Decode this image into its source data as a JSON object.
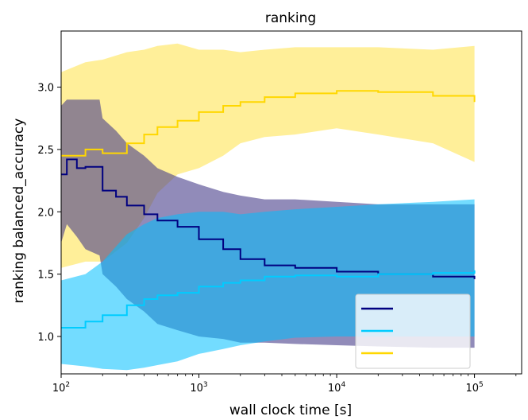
{
  "chart_data": {
    "type": "line",
    "title": "ranking",
    "xlabel": "wall clock time [s]",
    "ylabel": "ranking balanced_accuracy",
    "xscale": "log",
    "xlim": [
      100,
      220000
    ],
    "ylim": [
      0.7,
      3.45
    ],
    "x_ticks": [
      {
        "value": 100,
        "base": "10",
        "exp": "2"
      },
      {
        "value": 1000,
        "base": "10",
        "exp": "3"
      },
      {
        "value": 10000,
        "base": "10",
        "exp": "4"
      },
      {
        "value": 100000,
        "base": "10",
        "exp": "5"
      }
    ],
    "y_ticks": [
      {
        "value": 1.0,
        "label": "1.0"
      },
      {
        "value": 1.5,
        "label": "1.5"
      },
      {
        "value": 2.0,
        "label": "2.0"
      },
      {
        "value": 2.5,
        "label": "2.5"
      },
      {
        "value": 3.0,
        "label": "3.0"
      }
    ],
    "grid": false,
    "legend": {
      "position": "lower-right",
      "entries_visible": false
    },
    "series": [
      {
        "color": "#000080",
        "band_color": "#483d8b",
        "x": [
          100,
          110,
          130,
          150,
          190,
          200,
          250,
          300,
          400,
          500,
          700,
          1000,
          1500,
          2000,
          3000,
          5000,
          10000,
          20000,
          50000,
          100000
        ],
        "y": [
          2.3,
          2.42,
          2.35,
          2.36,
          2.36,
          2.17,
          2.12,
          2.05,
          1.98,
          1.93,
          1.88,
          1.78,
          1.7,
          1.62,
          1.57,
          1.55,
          1.52,
          1.5,
          1.48,
          1.46
        ],
        "lower": [
          1.75,
          1.9,
          1.8,
          1.7,
          1.65,
          1.5,
          1.4,
          1.3,
          1.2,
          1.1,
          1.05,
          1.0,
          0.98,
          0.95,
          0.95,
          0.94,
          0.93,
          0.92,
          0.91,
          0.91
        ],
        "upper": [
          2.85,
          2.9,
          2.9,
          2.9,
          2.9,
          2.75,
          2.65,
          2.55,
          2.45,
          2.35,
          2.28,
          2.22,
          2.16,
          2.13,
          2.1,
          2.1,
          2.08,
          2.06,
          2.06,
          2.06
        ]
      },
      {
        "color": "#00ccff",
        "band_color": "#00bfff",
        "x": [
          100,
          150,
          200,
          300,
          400,
          500,
          700,
          1000,
          1500,
          2000,
          3000,
          5000,
          10000,
          20000,
          50000,
          100000
        ],
        "y": [
          1.07,
          1.12,
          1.17,
          1.25,
          1.3,
          1.33,
          1.35,
          1.4,
          1.43,
          1.45,
          1.48,
          1.49,
          1.48,
          1.5,
          1.51,
          1.53
        ],
        "lower": [
          0.78,
          0.76,
          0.74,
          0.73,
          0.75,
          0.77,
          0.8,
          0.86,
          0.9,
          0.93,
          0.96,
          0.99,
          1.0,
          1.0,
          1.0,
          1.0
        ],
        "upper": [
          1.45,
          1.5,
          1.6,
          1.82,
          1.9,
          1.95,
          1.98,
          2.0,
          2.0,
          1.98,
          2.0,
          2.02,
          2.04,
          2.06,
          2.08,
          2.1
        ]
      },
      {
        "color": "#ffd700",
        "band_color": "#ffe033",
        "x": [
          100,
          150,
          200,
          300,
          400,
          500,
          700,
          1000,
          1500,
          2000,
          3000,
          5000,
          10000,
          20000,
          50000,
          100000
        ],
        "y": [
          2.45,
          2.5,
          2.47,
          2.55,
          2.62,
          2.68,
          2.73,
          2.8,
          2.85,
          2.88,
          2.92,
          2.95,
          2.97,
          2.96,
          2.93,
          2.88
        ],
        "lower": [
          1.55,
          1.6,
          1.6,
          1.75,
          1.95,
          2.15,
          2.3,
          2.35,
          2.45,
          2.55,
          2.6,
          2.62,
          2.67,
          2.62,
          2.55,
          2.4
        ],
        "upper": [
          3.12,
          3.2,
          3.22,
          3.28,
          3.3,
          3.33,
          3.35,
          3.3,
          3.3,
          3.28,
          3.3,
          3.32,
          3.32,
          3.32,
          3.3,
          3.33
        ]
      }
    ]
  }
}
